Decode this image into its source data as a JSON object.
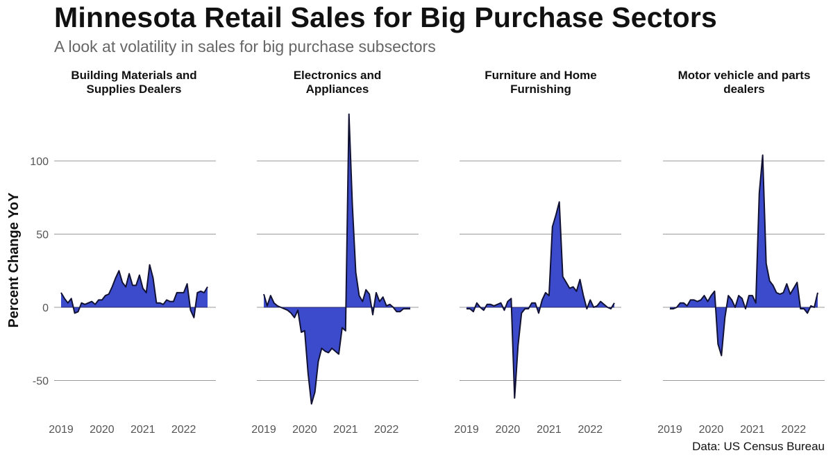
{
  "title": "Minnesota Retail Sales for Big Purchase Sectors",
  "subtitle": "A look at volatility in sales for big purchase subsectors",
  "source": "Data: US Census Bureau",
  "chart_data": {
    "type": "area",
    "ylabel": "Percent Change YoY",
    "ylim": [
      -75,
      135
    ],
    "yticks": [
      -50,
      0,
      50,
      100
    ],
    "xticks": [
      "2019",
      "2020",
      "2021",
      "2022"
    ],
    "fill_color": "#3b4bcc",
    "line_color": "#111133",
    "grid": true,
    "panels": [
      {
        "title_lines": [
          "Building Materials and",
          "Supplies Dealers"
        ],
        "x": [
          "2019-01",
          "2019-02",
          "2019-03",
          "2019-04",
          "2019-05",
          "2019-06",
          "2019-07",
          "2019-08",
          "2019-09",
          "2019-10",
          "2019-11",
          "2019-12",
          "2020-01",
          "2020-02",
          "2020-03",
          "2020-04",
          "2020-05",
          "2020-06",
          "2020-07",
          "2020-08",
          "2020-09",
          "2020-10",
          "2020-11",
          "2020-12",
          "2021-01",
          "2021-02",
          "2021-03",
          "2021-04",
          "2021-05",
          "2021-06",
          "2021-07",
          "2021-08",
          "2021-09",
          "2021-10",
          "2021-11",
          "2021-12",
          "2022-01",
          "2022-02",
          "2022-03",
          "2022-04",
          "2022-05",
          "2022-06",
          "2022-07",
          "2022-08"
        ],
        "values": [
          10,
          6,
          3,
          6,
          -4,
          -3,
          3,
          2,
          3,
          4,
          2,
          5,
          5,
          8,
          9,
          14,
          20,
          25,
          17,
          14,
          23,
          15,
          15,
          22,
          13,
          10,
          29,
          20,
          3,
          3,
          2,
          5,
          4,
          4,
          10,
          10,
          10,
          16,
          -2,
          -7,
          10,
          11,
          10,
          14
        ]
      },
      {
        "title_lines": [
          "Electronics and",
          "Appliances"
        ],
        "x": [
          "2019-01",
          "2019-02",
          "2019-03",
          "2019-04",
          "2019-05",
          "2019-06",
          "2019-07",
          "2019-08",
          "2019-09",
          "2019-10",
          "2019-11",
          "2019-12",
          "2020-01",
          "2020-02",
          "2020-03",
          "2020-04",
          "2020-05",
          "2020-06",
          "2020-07",
          "2020-08",
          "2020-09",
          "2020-10",
          "2020-11",
          "2020-12",
          "2021-01",
          "2021-02",
          "2021-03",
          "2021-04",
          "2021-05",
          "2021-06",
          "2021-07",
          "2021-08",
          "2021-09",
          "2021-10",
          "2021-11",
          "2021-12",
          "2022-01",
          "2022-02",
          "2022-03",
          "2022-04",
          "2022-05",
          "2022-06",
          "2022-07",
          "2022-08"
        ],
        "values": [
          9,
          1,
          8,
          3,
          1,
          0,
          -1,
          -2,
          -4,
          -7,
          -2,
          -17,
          -16,
          -45,
          -66,
          -58,
          -37,
          -28,
          -30,
          -31,
          -28,
          -30,
          -32,
          -14,
          -16,
          132,
          70,
          24,
          8,
          4,
          12,
          9,
          -5,
          10,
          4,
          7,
          1,
          2,
          0,
          -3,
          -3,
          -1,
          -1,
          -1
        ]
      },
      {
        "title_lines": [
          "Furniture and Home",
          "Furnishing"
        ],
        "x": [
          "2019-01",
          "2019-02",
          "2019-03",
          "2019-04",
          "2019-05",
          "2019-06",
          "2019-07",
          "2019-08",
          "2019-09",
          "2019-10",
          "2019-11",
          "2019-12",
          "2020-01",
          "2020-02",
          "2020-03",
          "2020-04",
          "2020-05",
          "2020-06",
          "2020-07",
          "2020-08",
          "2020-09",
          "2020-10",
          "2020-11",
          "2020-12",
          "2021-01",
          "2021-02",
          "2021-03",
          "2021-04",
          "2021-05",
          "2021-06",
          "2021-07",
          "2021-08",
          "2021-09",
          "2021-10",
          "2021-11",
          "2021-12",
          "2022-01",
          "2022-02",
          "2022-03",
          "2022-04",
          "2022-05",
          "2022-06",
          "2022-07",
          "2022-08"
        ],
        "values": [
          -1,
          -1,
          -3,
          3,
          0,
          -2,
          2,
          2,
          1,
          2,
          3,
          -2,
          4,
          6,
          -62,
          -26,
          -4,
          -1,
          -1,
          3,
          3,
          -4,
          5,
          10,
          8,
          55,
          63,
          72,
          21,
          17,
          13,
          14,
          11,
          19,
          8,
          -1,
          5,
          0,
          1,
          4,
          2,
          0,
          -1,
          3
        ]
      },
      {
        "title_lines": [
          "Motor vehicle and parts",
          "dealers"
        ],
        "x": [
          "2019-01",
          "2019-02",
          "2019-03",
          "2019-04",
          "2019-05",
          "2019-06",
          "2019-07",
          "2019-08",
          "2019-09",
          "2019-10",
          "2019-11",
          "2019-12",
          "2020-01",
          "2020-02",
          "2020-03",
          "2020-04",
          "2020-05",
          "2020-06",
          "2020-07",
          "2020-08",
          "2020-09",
          "2020-10",
          "2020-11",
          "2020-12",
          "2021-01",
          "2021-02",
          "2021-03",
          "2021-04",
          "2021-05",
          "2021-06",
          "2021-07",
          "2021-08",
          "2021-09",
          "2021-10",
          "2021-11",
          "2021-12",
          "2022-01",
          "2022-02",
          "2022-03",
          "2022-04",
          "2022-05",
          "2022-06",
          "2022-07",
          "2022-08"
        ],
        "values": [
          -1,
          -1,
          0,
          3,
          3,
          1,
          5,
          5,
          4,
          5,
          8,
          4,
          8,
          11,
          -25,
          -33,
          -7,
          8,
          5,
          0,
          8,
          6,
          -1,
          8,
          8,
          3,
          78,
          104,
          30,
          18,
          15,
          10,
          9,
          10,
          16,
          9,
          13,
          17,
          -1,
          -1,
          -4,
          1,
          0,
          10
        ]
      }
    ]
  }
}
